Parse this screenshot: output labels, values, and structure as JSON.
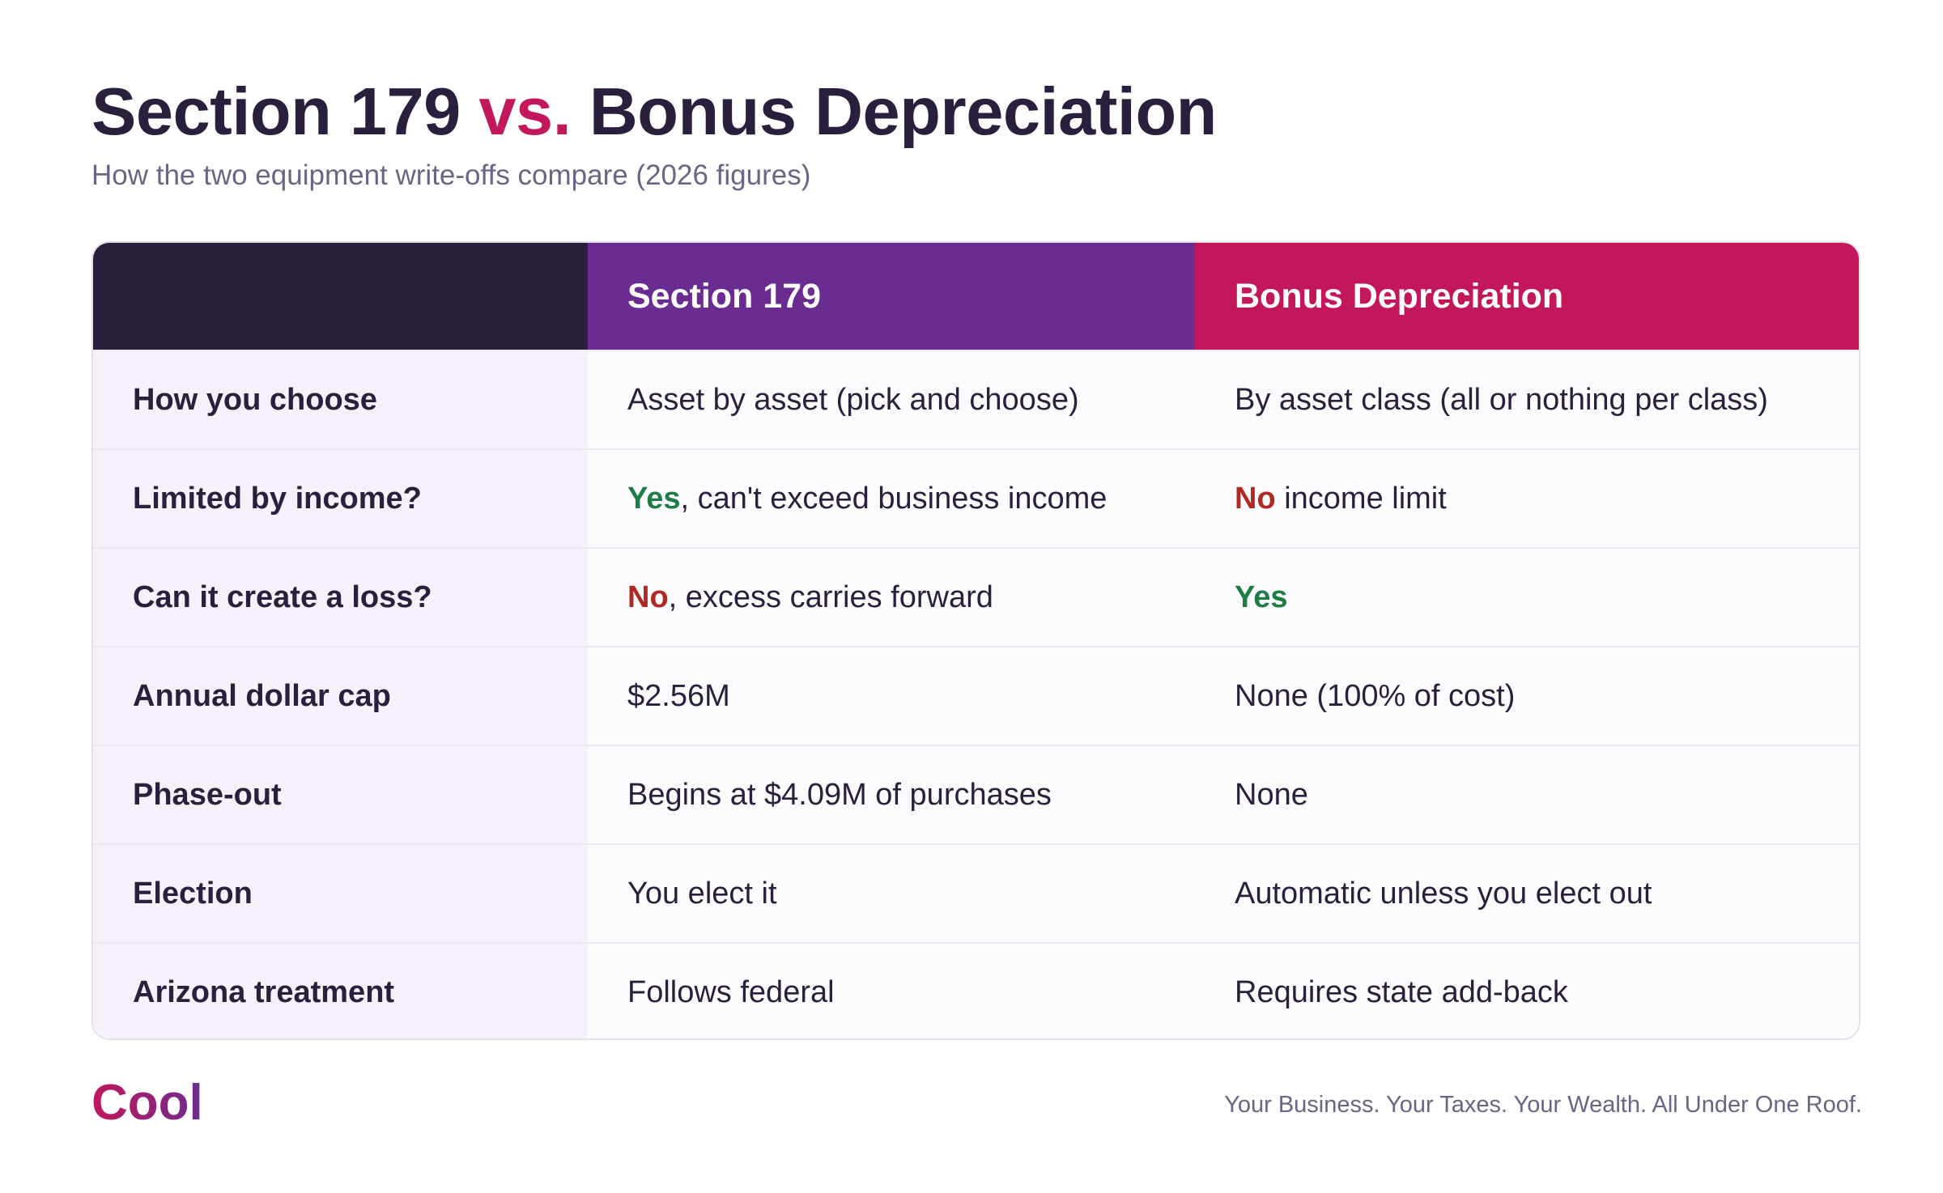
{
  "header": {
    "title_part1": "Section 179 ",
    "title_accent": "vs.",
    "title_part2": " Bonus Depreciation",
    "subtitle": "How the two equipment write-offs compare (2026 figures)"
  },
  "table": {
    "columns": [
      "",
      "Section 179",
      "Bonus Depreciation"
    ],
    "rows": [
      {
        "label": "How you choose",
        "s179": {
          "highlight": "",
          "text": "Asset by asset (pick and choose)"
        },
        "bonus": {
          "highlight": "",
          "text": "By asset class (all or nothing per class)"
        }
      },
      {
        "label": "Limited by income?",
        "s179": {
          "highlight": "Yes",
          "text": ", can't exceed business income"
        },
        "bonus": {
          "highlight": "No",
          "text": " income limit"
        }
      },
      {
        "label": "Can it create a loss?",
        "s179": {
          "highlight": "No",
          "text": ", excess carries forward"
        },
        "bonus": {
          "highlight": "Yes",
          "text": ""
        }
      },
      {
        "label": "Annual dollar cap",
        "s179": {
          "highlight": "",
          "text": "$2.56M"
        },
        "bonus": {
          "highlight": "",
          "text": "None (100% of cost)"
        }
      },
      {
        "label": "Phase-out",
        "s179": {
          "highlight": "",
          "text": "Begins at $4.09M of purchases"
        },
        "bonus": {
          "highlight": "",
          "text": "None"
        }
      },
      {
        "label": "Election",
        "s179": {
          "highlight": "",
          "text": "You elect it"
        },
        "bonus": {
          "highlight": "",
          "text": "Automatic unless you elect out"
        }
      },
      {
        "label": "Arizona treatment",
        "s179": {
          "highlight": "",
          "text": "Follows federal"
        },
        "bonus": {
          "highlight": "",
          "text": "Requires state add-back"
        }
      }
    ]
  },
  "footer": {
    "brand": "Cool",
    "tagline": "Your Business. Your Taxes. Your Wealth. All Under One Roof."
  },
  "colors": {
    "dark": "#2a1f3d",
    "section179": "#6b2c91",
    "bonus": "#c2185b",
    "yes": "#1e7d45",
    "no": "#b02a24"
  }
}
